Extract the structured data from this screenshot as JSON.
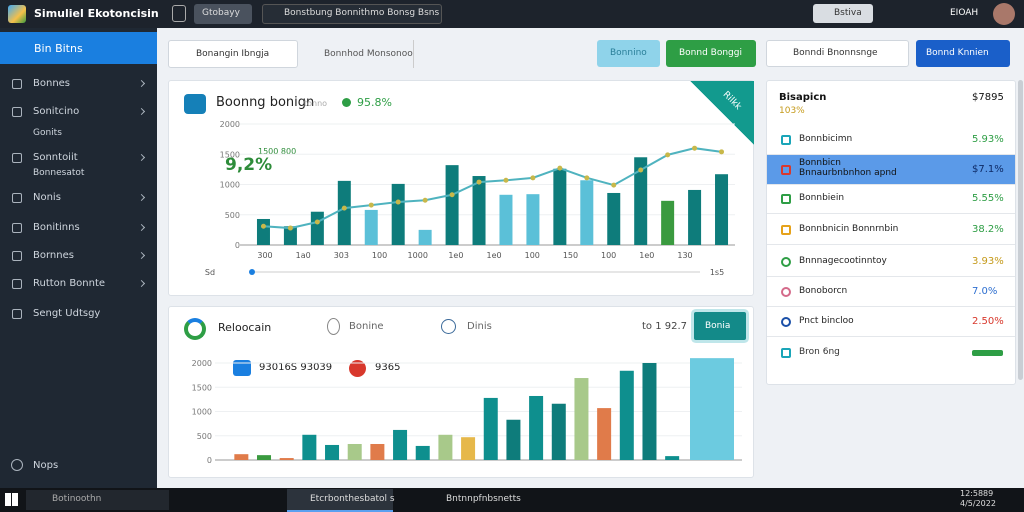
{
  "topbar": {
    "app_title": "Simuliel Ekotoncisin",
    "tab": "Gtobayy",
    "search": "Bonstbung Bonnithmo Bonsg Bsns",
    "action": "Bstiva",
    "user": "EIOAH"
  },
  "sidebar": {
    "active": "Bin Bitns",
    "items": [
      "Bonnes",
      "Sonitcino",
      "Gonits",
      "Sonntoiit",
      "Bonnesatot",
      "Nonis",
      "Bonitinns",
      "Bornnes",
      "Rutton Bonnte",
      "Sengt Udtsgy"
    ],
    "footer": "Nops"
  },
  "toolbar": {
    "dropdown1": "Bonangin Ibngja",
    "dropdown2": "Bonnhod Monsonoo",
    "button_light": "Bonnino",
    "button_green": "Bonnd Bonggi",
    "dropdown3": "Bonndi Bnonnsnge",
    "button_blue": "Bonnd Knnien"
  },
  "chart1": {
    "title": "Boonng bonign",
    "subtitle": "tonno",
    "change": "95.8%",
    "ribbon": "Rilkk",
    "big_value": "9,2%",
    "big_note": "1500 800",
    "x_start": "Sd",
    "x_end": "1s5",
    "ylim": [
      0,
      2000
    ],
    "yticks": [
      0,
      500,
      1000,
      1500,
      2000
    ],
    "x_labels": [
      "300",
      "1a0",
      "303",
      "100",
      "1000",
      "1e0",
      "1e0",
      "100",
      "150",
      "100",
      "1e0",
      "130"
    ],
    "bar_values": [
      430,
      310,
      550,
      1060,
      580,
      1010,
      250,
      1320,
      1140,
      830,
      840,
      1260,
      1070,
      860,
      1450,
      730,
      910,
      1170
    ],
    "bar_colors": [
      "#0e7c7b",
      "#0e7c7b",
      "#0e7c7b",
      "#0e7c7b",
      "#5bc0d8",
      "#0e7c7b",
      "#5bc0d8",
      "#0e7c7b",
      "#0e7c7b",
      "#5bc0d8",
      "#5bc0d8",
      "#0e7c7b",
      "#5bc0d8",
      "#0e7c7b",
      "#0e7c7b",
      "#3a9a3f",
      "#0e7c7b",
      "#0e7c7b"
    ],
    "line_values": [
      310,
      280,
      380,
      610,
      660,
      710,
      740,
      830,
      1040,
      1070,
      1110,
      1270,
      1110,
      990,
      1240,
      1490,
      1600,
      1540
    ],
    "line_color": "#4fb3bf"
  },
  "chart2": {
    "title": "Reloocain",
    "option1": "Bonine",
    "option2": "Dinis",
    "range": "to 1 92.7",
    "button": "Bonia",
    "stat1": "93016S 93039",
    "stat2": "9365",
    "ylim": [
      0,
      2000
    ],
    "yticks": [
      0,
      500,
      1000,
      1500,
      2000
    ],
    "bar_values": [
      120,
      100,
      40,
      520,
      310,
      330,
      330,
      620,
      290,
      520,
      470,
      1280,
      830,
      1320,
      1160,
      1690,
      1070,
      1840,
      2000,
      80,
      2100
    ],
    "bar_colors": [
      "#e07b4a",
      "#3a9a3f",
      "#e07b4a",
      "#0e8f8e",
      "#0e8f8e",
      "#a8c98a",
      "#e07b4a",
      "#0e8f8e",
      "#0e8f8e",
      "#a8c98a",
      "#e6b84a",
      "#0e8f8e",
      "#0e7c7b",
      "#0e8f8e",
      "#0e7c7b",
      "#a8c98a",
      "#e07b4a",
      "#0e8f8e",
      "#0e7c7b",
      "#0e8f8e",
      "#6ccbe0"
    ]
  },
  "side_panel": {
    "title": "Bisapicn",
    "subtitle": "103%",
    "total": "$7895",
    "rows": [
      {
        "name": "Bonnbicimn",
        "value": "5.93%"
      },
      {
        "name": "Bonnbicn Bnnaurbnbnhon apnd",
        "value": "$7.1%"
      },
      {
        "name": "Bonnbiein",
        "value": "5.55%"
      },
      {
        "name": "Bonnbnicin Bonnrnbin",
        "value": "38.2%"
      },
      {
        "name": "Bnnnagecootinntoy",
        "value": "3.93%"
      },
      {
        "name": "Bonoborcn",
        "value": "7.0%"
      },
      {
        "name": "Pnct bincloo",
        "value": "2.50%"
      }
    ],
    "last_row": "Bron 6ng"
  },
  "taskbar": {
    "search": "Botinoothn",
    "app1": "Etcrbonthesbatol s",
    "app2": "Bntnnpfnbsnetts",
    "time": "12:5889",
    "date": "4/5/2022"
  }
}
